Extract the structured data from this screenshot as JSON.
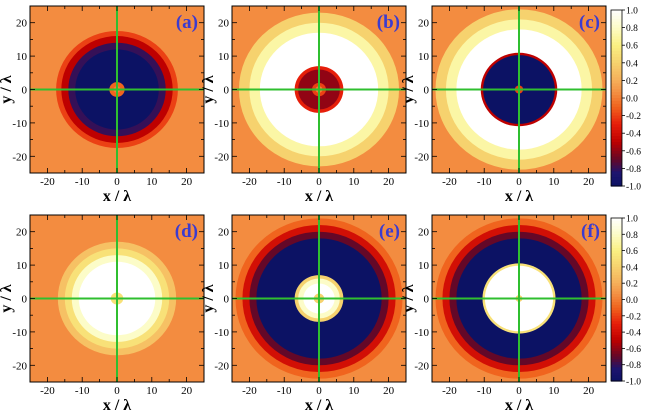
{
  "chart_data": [
    {
      "type": "heatmap",
      "panel_label": "(a)",
      "xlabel": "x / λ",
      "ylabel": "y / λ",
      "xlim": [
        -25,
        25
      ],
      "ylim": [
        -25,
        25
      ],
      "x_ticks": [
        "-20",
        "-10",
        "0",
        "10",
        "20"
      ],
      "y_ticks": [
        "-20",
        "-10",
        "0",
        "10",
        "20"
      ],
      "crosshair": {
        "x": 0,
        "y": 0,
        "color": "#2fbf2f"
      },
      "background_value": 0.05,
      "rings": [
        {
          "r_outer": 17.5,
          "value": -0.2
        },
        {
          "r_outer": 16.0,
          "value": -0.5
        },
        {
          "r_outer": 14.0,
          "value": -0.8
        },
        {
          "r_outer": 12.0,
          "value": -1.0
        },
        {
          "r_outer": 2.2,
          "value": -0.1
        },
        {
          "r_outer": 1.0,
          "value": 0.0
        }
      ]
    },
    {
      "type": "heatmap",
      "panel_label": "(b)",
      "xlabel": "x / λ",
      "ylabel": "y / λ",
      "xlim": [
        -25,
        25
      ],
      "ylim": [
        -25,
        25
      ],
      "x_ticks": [
        "-20",
        "-10",
        "0",
        "10",
        "20"
      ],
      "y_ticks": [
        "-20",
        "-10",
        "0",
        "10",
        "20"
      ],
      "crosshair": {
        "x": 0,
        "y": 0,
        "color": "#2fbf2f"
      },
      "background_value": 0.05,
      "rings": [
        {
          "r_outer": 23.0,
          "value": 0.4
        },
        {
          "r_outer": 20.0,
          "value": 0.7
        },
        {
          "r_outer": 17.0,
          "value": 1.0
        },
        {
          "r_outer": 7.0,
          "value": -0.3
        },
        {
          "r_outer": 6.0,
          "value": -0.6
        },
        {
          "r_outer": 2.0,
          "value": -0.2
        },
        {
          "r_outer": 1.0,
          "value": 0.0
        }
      ]
    },
    {
      "type": "heatmap",
      "panel_label": "(c)",
      "xlabel": "x / λ",
      "ylabel": "y / λ",
      "xlim": [
        -25,
        25
      ],
      "ylim": [
        -25,
        25
      ],
      "x_ticks": [
        "-20",
        "-10",
        "0",
        "10",
        "20"
      ],
      "y_ticks": [
        "-20",
        "-10",
        "0",
        "10",
        "20"
      ],
      "crosshair": {
        "x": 0,
        "y": 0,
        "color": "#2fbf2f"
      },
      "background_value": 0.05,
      "rings": [
        {
          "r_outer": 24.0,
          "value": 0.4
        },
        {
          "r_outer": 21.0,
          "value": 0.7
        },
        {
          "r_outer": 18.0,
          "value": 1.0
        },
        {
          "r_outer": 11.0,
          "value": -0.5
        },
        {
          "r_outer": 10.3,
          "value": -1.0
        },
        {
          "r_outer": 1.2,
          "value": -0.2
        }
      ]
    },
    {
      "type": "heatmap",
      "panel_label": "(d)",
      "xlabel": "x / λ",
      "ylabel": "y / λ",
      "xlim": [
        -25,
        25
      ],
      "ylim": [
        -25,
        25
      ],
      "x_ticks": [
        "-20",
        "-10",
        "0",
        "10",
        "20"
      ],
      "y_ticks": [
        "-20",
        "-10",
        "0",
        "10",
        "20"
      ],
      "crosshair": {
        "x": 0,
        "y": 0,
        "color": "#2fbf2f"
      },
      "background_value": 0.05,
      "rings": [
        {
          "r_outer": 17.0,
          "value": 0.3
        },
        {
          "r_outer": 15.0,
          "value": 0.5
        },
        {
          "r_outer": 13.0,
          "value": 0.8
        },
        {
          "r_outer": 11.0,
          "value": 1.0
        },
        {
          "r_outer": 1.8,
          "value": 0.5
        }
      ]
    },
    {
      "type": "heatmap",
      "panel_label": "(e)",
      "xlabel": "x / λ",
      "ylabel": "y / λ",
      "xlim": [
        -25,
        25
      ],
      "ylim": [
        -25,
        25
      ],
      "x_ticks": [
        "-20",
        "-10",
        "0",
        "10",
        "20"
      ],
      "y_ticks": [
        "-20",
        "-10",
        "0",
        "10",
        "20"
      ],
      "crosshair": {
        "x": 0,
        "y": 0,
        "color": "#2fbf2f"
      },
      "background_value": 0.05,
      "rings": [
        {
          "r_outer": 24.0,
          "value": -0.1
        },
        {
          "r_outer": 22.0,
          "value": -0.4
        },
        {
          "r_outer": 20.0,
          "value": -0.7
        },
        {
          "r_outer": 18.0,
          "value": -1.0
        },
        {
          "r_outer": 7.0,
          "value": 0.4
        },
        {
          "r_outer": 6.0,
          "value": 0.8
        },
        {
          "r_outer": 4.5,
          "value": 1.0
        },
        {
          "r_outer": 1.5,
          "value": 0.4
        }
      ]
    },
    {
      "type": "heatmap",
      "panel_label": "(f)",
      "xlabel": "x / λ",
      "ylabel": "y / λ",
      "xlim": [
        -25,
        25
      ],
      "ylim": [
        -25,
        25
      ],
      "x_ticks": [
        "-20",
        "-10",
        "0",
        "10",
        "20"
      ],
      "y_ticks": [
        "-20",
        "-10",
        "0",
        "10",
        "20"
      ],
      "crosshair": {
        "x": 0,
        "y": 0,
        "color": "#2fbf2f"
      },
      "background_value": 0.05,
      "rings": [
        {
          "r_outer": 24.0,
          "value": -0.1
        },
        {
          "r_outer": 22.0,
          "value": -0.4
        },
        {
          "r_outer": 20.0,
          "value": -0.7
        },
        {
          "r_outer": 18.0,
          "value": -1.0
        },
        {
          "r_outer": 10.5,
          "value": 0.5
        },
        {
          "r_outer": 9.8,
          "value": 1.0
        },
        {
          "r_outer": 1.0,
          "value": 0.4
        }
      ]
    }
  ],
  "colorbars": [
    {
      "ticks": [
        "1.0",
        "0.8",
        "0.6",
        "0.4",
        "0.2",
        "0.0",
        "-0.2",
        "-0.4",
        "-0.6",
        "-0.8",
        "-1.0"
      ],
      "range": [
        -1.0,
        1.0
      ]
    },
    {
      "ticks": [
        "1.0",
        "0.8",
        "0.6",
        "0.4",
        "0.2",
        "0.0",
        "-0.2",
        "-0.4",
        "-0.6",
        "-0.8",
        "-1.0"
      ],
      "range": [
        -1.0,
        1.0
      ]
    }
  ],
  "colors": {
    "label": "#3b3bd0",
    "axis": "#000000",
    "crosshair": "#2fbf2f"
  }
}
